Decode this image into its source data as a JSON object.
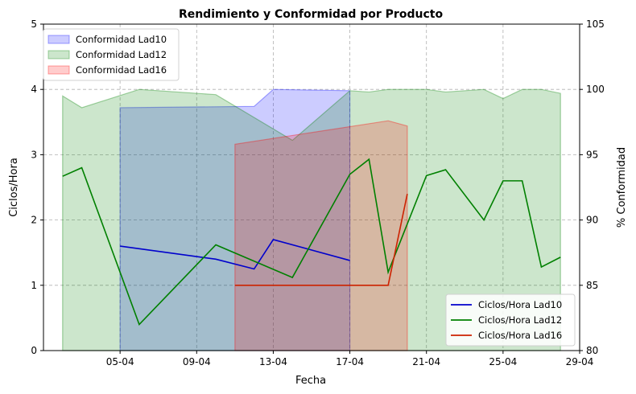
{
  "chart_data": {
    "type": "line",
    "title": "Rendimiento y Conformidad por Producto",
    "xlabel": "Fecha",
    "ylabel": "Ciclos/Hora",
    "y2label": "% Conformidad",
    "xlim": [
      "2024-04-01",
      "2024-04-29"
    ],
    "ylim": [
      0,
      5
    ],
    "y2lim": [
      80,
      105
    ],
    "x_ticks": [
      "05-04",
      "09-04",
      "13-04",
      "17-04",
      "21-04",
      "25-04",
      "29-04"
    ],
    "y_ticks": [
      "0",
      "1",
      "2",
      "3",
      "4",
      "5"
    ],
    "y2_ticks": [
      "80",
      "85",
      "90",
      "95",
      "100",
      "105"
    ],
    "grid": true,
    "legend_left_placement": "upper-left",
    "legend_right_placement": "lower-right",
    "area_series": [
      {
        "name": "Conformidad Lad10",
        "color": "#0000ff",
        "x": [
          "2024-04-05",
          "2024-04-12",
          "2024-04-13",
          "2024-04-17"
        ],
        "values": [
          98.6,
          98.7,
          100.0,
          99.9
        ]
      },
      {
        "name": "Conformidad Lad12",
        "color": "#008000",
        "x": [
          "2024-04-02",
          "2024-04-03",
          "2024-04-06",
          "2024-04-10",
          "2024-04-14",
          "2024-04-17",
          "2024-04-18",
          "2024-04-19",
          "2024-04-21",
          "2024-04-22",
          "2024-04-24",
          "2024-04-25",
          "2024-04-26",
          "2024-04-27",
          "2024-04-28"
        ],
        "values": [
          99.5,
          98.6,
          100.0,
          99.6,
          96.1,
          99.9,
          99.8,
          100.0,
          100.0,
          99.8,
          100.0,
          99.3,
          100.0,
          100.0,
          99.7
        ]
      },
      {
        "name": "Conformidad Lad16",
        "color": "#ff0000",
        "x": [
          "2024-04-11",
          "2024-04-19",
          "2024-04-20"
        ],
        "values": [
          95.8,
          97.6,
          97.2
        ]
      }
    ],
    "line_series": [
      {
        "name": "Ciclos/Hora Lad10",
        "color": "#0000cc",
        "x": [
          "2024-04-05",
          "2024-04-10",
          "2024-04-12",
          "2024-04-13",
          "2024-04-17"
        ],
        "values": [
          1.6,
          1.4,
          1.25,
          1.7,
          1.38
        ]
      },
      {
        "name": "Ciclos/Hora Lad12",
        "color": "#008000",
        "x": [
          "2024-04-02",
          "2024-04-03",
          "2024-04-06",
          "2024-04-10",
          "2024-04-14",
          "2024-04-17",
          "2024-04-18",
          "2024-04-19",
          "2024-04-21",
          "2024-04-22",
          "2024-04-24",
          "2024-04-25",
          "2024-04-26",
          "2024-04-27",
          "2024-04-28"
        ],
        "values": [
          2.67,
          2.8,
          0.4,
          1.62,
          1.12,
          2.7,
          2.93,
          1.2,
          2.68,
          2.77,
          2.0,
          2.6,
          2.6,
          1.28,
          1.43
        ]
      },
      {
        "name": "Ciclos/Hora Lad16",
        "color": "#cc2200",
        "x": [
          "2024-04-11",
          "2024-04-19",
          "2024-04-20"
        ],
        "values": [
          1.0,
          1.0,
          2.4
        ]
      }
    ]
  }
}
